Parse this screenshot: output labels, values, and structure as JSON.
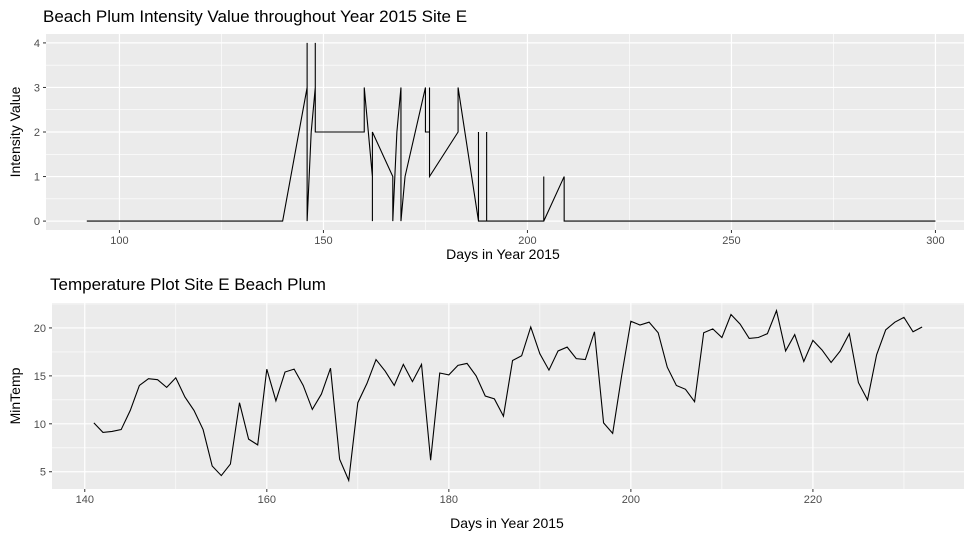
{
  "chart_data": [
    {
      "type": "line",
      "title": "Beach Plum Intensity Value throughout Year 2015 Site E",
      "xlabel": "Days in Year 2015",
      "ylabel": "Intensity Value",
      "xlim": [
        82,
        307
      ],
      "ylim": [
        -0.2,
        4.2
      ],
      "xticks": [
        100,
        150,
        200,
        250,
        300
      ],
      "yticks": [
        0,
        1,
        2,
        3,
        4
      ],
      "grid": true,
      "legend": "none",
      "background": "#ebebeb",
      "line_color": "#000000",
      "series": [
        {
          "x": [
            92,
            140,
            146,
            146,
            146,
            147,
            148,
            148,
            148,
            160,
            160,
            162,
            162,
            162,
            167,
            167,
            168,
            169,
            169,
            170,
            175,
            175,
            176,
            176,
            176,
            183,
            183,
            188,
            188,
            188,
            190,
            190,
            190,
            204,
            204,
            204,
            209,
            209,
            209,
            300
          ],
          "y": [
            0,
            0,
            3,
            4,
            0,
            2,
            3,
            4,
            2,
            2,
            3,
            1,
            0,
            2,
            1,
            0,
            2,
            3,
            0,
            1,
            3,
            2,
            2,
            3,
            1,
            2,
            3,
            0,
            2,
            0,
            0,
            2,
            0,
            0,
            1,
            0,
            1,
            0,
            0,
            0
          ]
        }
      ]
    },
    {
      "type": "line",
      "title": "Temperature Plot Site E Beach Plum",
      "xlabel": "Days in Year 2015",
      "ylabel": "MinTemp",
      "xlim": [
        136.4,
        236.6
      ],
      "ylim": [
        3.2,
        22.6
      ],
      "xticks": [
        140,
        160,
        180,
        200,
        220
      ],
      "yticks": [
        5,
        10,
        15,
        20
      ],
      "grid": true,
      "legend": "none",
      "background": "#ebebeb",
      "line_color": "#000000",
      "series": [
        {
          "x": [
            141,
            142,
            143,
            144,
            145,
            146,
            147,
            148,
            149,
            150,
            151,
            152,
            153,
            154,
            155,
            156,
            157,
            158,
            159,
            160,
            161,
            162,
            163,
            164,
            165,
            166,
            167,
            168,
            169,
            170,
            171,
            172,
            173,
            174,
            175,
            176,
            177,
            178,
            179,
            180,
            181,
            182,
            183,
            184,
            185,
            186,
            187,
            188,
            189,
            190,
            191,
            192,
            193,
            194,
            195,
            196,
            197,
            198,
            199,
            200,
            201,
            202,
            203,
            204,
            205,
            206,
            207,
            208,
            209,
            210,
            211,
            212,
            213,
            214,
            215,
            216,
            217,
            218,
            219,
            220,
            221,
            222,
            223,
            224,
            225,
            226,
            227,
            228,
            229,
            230,
            231,
            232
          ],
          "y": [
            10.1,
            9.1,
            9.2,
            9.4,
            11.4,
            14.0,
            14.7,
            14.6,
            13.8,
            14.8,
            12.8,
            11.4,
            9.4,
            5.6,
            4.6,
            5.8,
            12.2,
            8.4,
            7.8,
            15.7,
            12.4,
            15.4,
            15.7,
            14.0,
            11.5,
            13.1,
            15.8,
            6.3,
            4.1,
            12.2,
            14.2,
            16.7,
            15.5,
            14.0,
            16.2,
            14.4,
            16.2,
            6.2,
            15.3,
            15.1,
            16.1,
            16.3,
            15.0,
            12.9,
            12.6,
            10.8,
            16.6,
            17.1,
            20.1,
            17.3,
            15.6,
            17.6,
            18.0,
            16.8,
            16.7,
            19.6,
            10.1,
            9.0,
            15.1,
            20.7,
            20.3,
            20.6,
            19.5,
            15.9,
            14.0,
            13.6,
            12.3,
            19.5,
            19.9,
            19.0,
            21.4,
            20.4,
            18.9,
            19.0,
            19.4,
            21.8,
            17.6,
            19.3,
            16.5,
            18.7,
            17.7,
            16.4,
            17.6,
            19.4,
            14.3,
            12.5,
            17.2,
            19.8,
            20.6,
            21.1,
            19.6,
            20.1
          ]
        }
      ]
    }
  ]
}
